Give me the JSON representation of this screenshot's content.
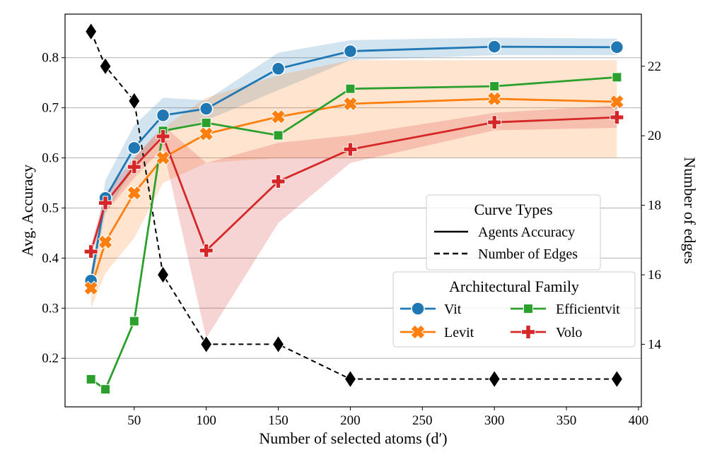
{
  "chart_data": {
    "type": "line",
    "xlabel": "Number of selected atoms (d′)",
    "ylabel_left": "Avg. Accuracy",
    "ylabel_right": "Number of edges",
    "xlim": [
      2,
      402
    ],
    "ylim_left": [
      0.103,
      0.887
    ],
    "ylim_right": [
      12.2,
      23.5
    ],
    "x_ticks": [
      50,
      100,
      150,
      200,
      250,
      300,
      350,
      400
    ],
    "x_tick_labels": [
      "50",
      "100",
      "150",
      "200",
      "250",
      "300",
      "350",
      "400"
    ],
    "y_left_ticks": [
      0.2,
      0.3,
      0.4,
      0.5,
      0.6,
      0.7,
      0.8
    ],
    "y_left_tick_labels": [
      "0.2",
      "0.3",
      "0.4",
      "0.5",
      "0.6",
      "0.7",
      "0.8"
    ],
    "y_right_ticks": [
      14,
      16,
      18,
      20,
      22
    ],
    "y_right_tick_labels": [
      "14",
      "16",
      "18",
      "20",
      "22"
    ],
    "grid": "horizontal",
    "series": [
      {
        "name": "Vit",
        "color": "#1f77b4",
        "marker": "circle",
        "x": [
          20,
          30,
          50,
          70,
          100,
          150,
          200,
          300,
          385
        ],
        "values": [
          0.355,
          0.52,
          0.62,
          0.685,
          0.698,
          0.778,
          0.813,
          0.822,
          0.821
        ],
        "lower": [
          0.34,
          0.49,
          0.58,
          0.65,
          0.675,
          0.735,
          0.795,
          0.805,
          0.805
        ],
        "upper": [
          0.37,
          0.555,
          0.665,
          0.72,
          0.715,
          0.81,
          0.835,
          0.84,
          0.838
        ]
      },
      {
        "name": "Levit",
        "color": "#ff7f0e",
        "marker": "x",
        "x": [
          20,
          30,
          50,
          70,
          100,
          150,
          200,
          300,
          385
        ],
        "values": [
          0.34,
          0.432,
          0.53,
          0.6,
          0.648,
          0.682,
          0.708,
          0.718,
          0.712
        ],
        "lower": [
          0.3,
          0.37,
          0.44,
          0.55,
          0.59,
          0.6,
          0.6,
          0.6,
          0.6
        ],
        "upper": [
          0.38,
          0.49,
          0.6,
          0.66,
          0.72,
          0.765,
          0.795,
          0.795,
          0.795
        ]
      },
      {
        "name": "Efficientvit",
        "color": "#2ca02c",
        "marker": "square",
        "x": [
          20,
          30,
          50,
          70,
          100,
          150,
          200,
          300,
          385
        ],
        "values": [
          0.158,
          0.138,
          0.274,
          0.654,
          0.67,
          0.645,
          0.738,
          0.743,
          0.761
        ],
        "lower": null,
        "upper": null
      },
      {
        "name": "Volo",
        "color": "#d62728",
        "marker": "plus",
        "x": [
          20,
          30,
          50,
          70,
          100,
          150,
          200,
          300,
          385
        ],
        "values": [
          0.413,
          0.51,
          0.582,
          0.643,
          0.415,
          0.553,
          0.617,
          0.671,
          0.681
        ],
        "lower": [
          0.4,
          0.49,
          0.56,
          0.62,
          0.24,
          0.47,
          0.59,
          0.655,
          0.66
        ],
        "upper": [
          0.425,
          0.53,
          0.6,
          0.665,
          0.59,
          0.63,
          0.645,
          0.69,
          0.705
        ]
      }
    ],
    "edges_series": {
      "name": "Number of Edges",
      "color": "#000000",
      "marker": "diamond",
      "axis": "right",
      "x": [
        20,
        30,
        50,
        70,
        100,
        150,
        200,
        300,
        385
      ],
      "values": [
        23,
        22,
        21,
        16,
        14,
        14,
        13,
        13,
        13
      ]
    },
    "legends": [
      {
        "title": "Curve Types",
        "position": "center-right",
        "entries": [
          {
            "label": "Agents Accuracy",
            "style": "solid"
          },
          {
            "label": "Number of Edges",
            "style": "dashed"
          }
        ]
      },
      {
        "title": "Architectural Family",
        "position": "lower-right",
        "entries": [
          {
            "label": "Vit",
            "series": "Vit"
          },
          {
            "label": "Efficientvit",
            "series": "Efficientvit"
          },
          {
            "label": "Levit",
            "series": "Levit"
          },
          {
            "label": "Volo",
            "series": "Volo"
          }
        ]
      }
    ]
  }
}
